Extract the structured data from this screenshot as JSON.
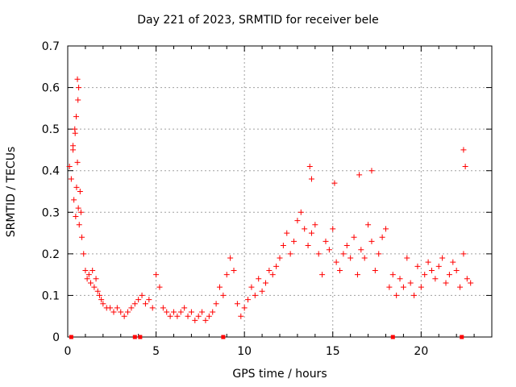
{
  "chart_data": {
    "type": "scatter",
    "title": "Day 221 of 2023, SRMTID for receiver bele",
    "xlabel": "GPS time / hours",
    "ylabel": "SRMTID / TECUs",
    "xlim": [
      0,
      24
    ],
    "ylim": [
      0,
      0.7
    ],
    "xticks": [
      0,
      5,
      10,
      15,
      20
    ],
    "yticks": [
      0,
      0.1,
      0.2,
      0.3,
      0.4,
      0.5,
      0.6,
      0.7
    ],
    "grid": true,
    "marker": "+",
    "marker_color": "#ff0000",
    "series": [
      {
        "name": "SRMTID",
        "x": [
          0.1,
          0.2,
          0.3,
          0.35,
          0.4,
          0.45,
          0.5,
          0.55,
          0.6,
          0.65,
          0.7,
          0.75,
          0.8,
          0.9,
          1.0,
          1.1,
          1.2,
          1.3,
          1.4,
          1.5,
          1.6,
          1.7,
          1.8,
          1.9,
          2.0,
          2.2,
          2.4,
          2.6,
          2.8,
          3.0,
          3.2,
          3.4,
          3.6,
          3.8,
          4.0,
          4.2,
          4.4,
          4.6,
          4.8,
          5.0,
          5.2,
          5.4,
          5.6,
          5.8,
          6.0,
          6.2,
          6.4,
          6.6,
          6.8,
          7.0,
          7.2,
          7.4,
          7.6,
          7.8,
          8.0,
          8.2,
          8.4,
          8.6,
          8.8,
          9.0,
          9.2,
          9.4,
          9.6,
          9.8,
          10.0,
          10.2,
          10.4,
          10.6,
          10.8,
          11.0,
          11.2,
          11.4,
          11.6,
          11.8,
          12.0,
          12.2,
          12.4,
          12.6,
          12.8,
          13.0,
          13.2,
          13.4,
          13.6,
          13.8,
          14.0,
          14.2,
          14.4,
          14.6,
          14.8,
          15.0,
          15.2,
          15.4,
          15.6,
          15.8,
          16.0,
          16.2,
          16.4,
          16.6,
          16.8,
          17.0,
          17.2,
          17.4,
          17.6,
          17.8,
          18.0,
          18.2,
          18.4,
          18.6,
          18.8,
          19.0,
          19.2,
          19.4,
          19.6,
          19.8,
          20.0,
          20.2,
          20.4,
          20.6,
          20.8,
          21.0,
          21.2,
          21.4,
          21.6,
          21.8,
          22.0,
          22.2,
          22.4,
          22.6,
          22.8,
          0.55,
          0.58,
          0.62,
          0.48,
          0.42,
          0.3,
          13.7,
          13.8,
          15.1,
          16.5,
          17.2,
          22.4,
          22.5
        ],
        "y": [
          0.41,
          0.38,
          0.45,
          0.33,
          0.5,
          0.29,
          0.36,
          0.42,
          0.31,
          0.27,
          0.35,
          0.3,
          0.24,
          0.2,
          0.16,
          0.14,
          0.15,
          0.13,
          0.16,
          0.12,
          0.14,
          0.11,
          0.1,
          0.09,
          0.08,
          0.07,
          0.07,
          0.06,
          0.07,
          0.06,
          0.05,
          0.06,
          0.07,
          0.08,
          0.09,
          0.1,
          0.08,
          0.09,
          0.07,
          0.15,
          0.12,
          0.07,
          0.06,
          0.05,
          0.06,
          0.05,
          0.06,
          0.07,
          0.05,
          0.06,
          0.04,
          0.05,
          0.06,
          0.04,
          0.05,
          0.06,
          0.08,
          0.12,
          0.1,
          0.15,
          0.19,
          0.16,
          0.08,
          0.05,
          0.07,
          0.09,
          0.12,
          0.1,
          0.14,
          0.11,
          0.13,
          0.16,
          0.15,
          0.17,
          0.19,
          0.22,
          0.25,
          0.2,
          0.23,
          0.28,
          0.3,
          0.26,
          0.22,
          0.25,
          0.27,
          0.2,
          0.15,
          0.23,
          0.21,
          0.26,
          0.18,
          0.16,
          0.2,
          0.22,
          0.19,
          0.24,
          0.15,
          0.21,
          0.19,
          0.27,
          0.23,
          0.16,
          0.2,
          0.24,
          0.26,
          0.12,
          0.15,
          0.1,
          0.14,
          0.12,
          0.19,
          0.13,
          0.1,
          0.17,
          0.12,
          0.15,
          0.18,
          0.16,
          0.14,
          0.17,
          0.19,
          0.13,
          0.15,
          0.18,
          0.16,
          0.12,
          0.2,
          0.14,
          0.13,
          0.62,
          0.57,
          0.6,
          0.53,
          0.49,
          0.46,
          0.41,
          0.38,
          0.37,
          0.39,
          0.4,
          0.45,
          0.41
        ]
      }
    ],
    "x_axis_marks": [
      0.2,
      3.8,
      4.1,
      8.8,
      18.4,
      22.3
    ]
  }
}
